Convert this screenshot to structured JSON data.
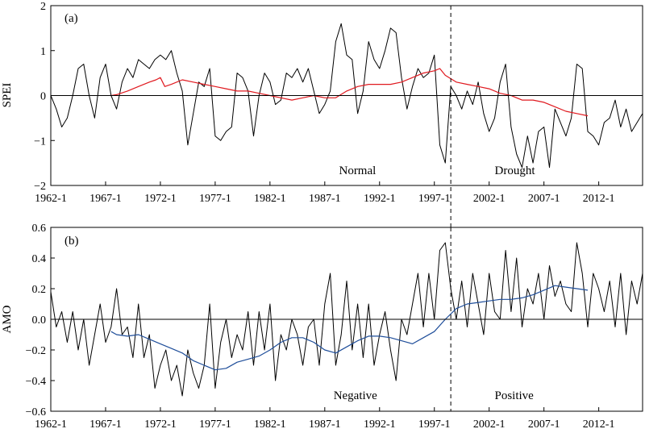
{
  "chart_data": [
    {
      "type": "line",
      "panel_label": "(a)",
      "ylabel": "SPEI",
      "xlabel": "",
      "x_unit": "year",
      "xlim": [
        1962.0,
        2016.0
      ],
      "ylim": [
        -2,
        2
      ],
      "xtick_labels": [
        "1962-1",
        "1967-1",
        "1972-1",
        "1977-1",
        "1982-1",
        "1987-1",
        "1992-1",
        "1997-1",
        "2002-1",
        "2007-1",
        "2012-1"
      ],
      "xtick_values": [
        1962,
        1967,
        1972,
        1977,
        1982,
        1987,
        1992,
        1997,
        2002,
        2007,
        2012
      ],
      "ytick_labels": [
        "−2",
        "−1",
        "0",
        "1",
        "2"
      ],
      "ytick_values": [
        -2,
        -1,
        0,
        1,
        2
      ],
      "zero_line": true,
      "divider_x": 1998.5,
      "annotations": [
        {
          "text": "Normal",
          "x": 1988.3,
          "y": -1.75
        },
        {
          "text": "Drought",
          "x": 2002.5,
          "y": -1.75
        }
      ],
      "series": [
        {
          "color": "#000000",
          "x": [
            1962.0,
            1962.5,
            1963.0,
            1963.5,
            1964.0,
            1964.5,
            1965.0,
            1965.5,
            1966.0,
            1966.5,
            1967.0,
            1967.5,
            1968.0,
            1968.5,
            1969.0,
            1969.5,
            1970.0,
            1970.5,
            1971.0,
            1971.5,
            1972.0,
            1972.5,
            1973.0,
            1973.5,
            1974.0,
            1974.5,
            1975.0,
            1975.5,
            1976.0,
            1976.5,
            1977.0,
            1977.5,
            1978.0,
            1978.5,
            1979.0,
            1979.5,
            1980.0,
            1980.5,
            1981.0,
            1981.5,
            1982.0,
            1982.5,
            1983.0,
            1983.5,
            1984.0,
            1984.5,
            1985.0,
            1985.5,
            1986.0,
            1986.5,
            1987.0,
            1987.5,
            1988.0,
            1988.5,
            1989.0,
            1989.5,
            1990.0,
            1990.5,
            1991.0,
            1991.5,
            1992.0,
            1992.5,
            1993.0,
            1993.5,
            1994.0,
            1994.5,
            1995.0,
            1995.5,
            1996.0,
            1996.5,
            1997.0,
            1997.5,
            1998.0,
            1998.5,
            1999.0,
            1999.5,
            2000.0,
            2000.5,
            2001.0,
            2001.5,
            2002.0,
            2002.5,
            2003.0,
            2003.5,
            2004.0,
            2004.5,
            2005.0,
            2005.5,
            2006.0,
            2006.5,
            2007.0,
            2007.5,
            2008.0,
            2008.5,
            2009.0,
            2009.5,
            2010.0,
            2010.5,
            2011.0,
            2011.5,
            2012.0,
            2012.5,
            2013.0,
            2013.5,
            2014.0,
            2014.5,
            2015.0,
            2015.5,
            2016.0
          ],
          "y": [
            0.0,
            -0.3,
            -0.7,
            -0.5,
            0.0,
            0.6,
            0.7,
            0.0,
            -0.5,
            0.4,
            0.7,
            0.0,
            -0.3,
            0.3,
            0.6,
            0.4,
            0.8,
            0.7,
            0.6,
            0.8,
            0.9,
            0.8,
            1.0,
            0.5,
            0.1,
            -1.1,
            -0.4,
            0.3,
            0.2,
            0.6,
            -0.9,
            -1.0,
            -0.8,
            -0.7,
            0.5,
            0.4,
            0.1,
            -0.9,
            0.0,
            0.5,
            0.3,
            -0.2,
            -0.1,
            0.5,
            0.4,
            0.6,
            0.3,
            0.6,
            0.1,
            -0.4,
            -0.2,
            0.1,
            1.2,
            1.6,
            0.9,
            0.8,
            -0.4,
            0.1,
            1.2,
            0.8,
            0.6,
            1.0,
            1.5,
            1.4,
            0.4,
            -0.3,
            0.2,
            0.6,
            0.4,
            0.5,
            0.9,
            -1.1,
            -1.5,
            0.2,
            0.0,
            -0.3,
            0.1,
            -0.2,
            0.3,
            -0.4,
            -0.8,
            -0.5,
            0.3,
            0.7,
            -0.7,
            -1.3,
            -1.6,
            -0.9,
            -1.5,
            -0.8,
            -0.7,
            -1.6,
            -0.3,
            -0.6,
            -0.9,
            -0.5,
            0.7,
            0.6,
            -0.8,
            -0.9,
            -1.1,
            -0.6,
            -0.5,
            -0.1,
            -0.7,
            -0.3,
            -0.8,
            -0.6,
            -0.4
          ]
        },
        {
          "color": "#e0191f",
          "x": [
            1967.5,
            1968.0,
            1969.0,
            1970.0,
            1971.0,
            1971.6,
            1972.0,
            1972.4,
            1973.0,
            1974.0,
            1975.0,
            1976.0,
            1977.0,
            1978.0,
            1979.0,
            1980.0,
            1981.0,
            1982.0,
            1983.0,
            1984.0,
            1985.0,
            1986.0,
            1987.0,
            1988.0,
            1989.0,
            1990.0,
            1991.0,
            1992.0,
            1993.0,
            1994.0,
            1995.0,
            1996.0,
            1997.0,
            1997.5,
            1998.0,
            1999.0,
            2000.0,
            2001.0,
            2002.0,
            2003.0,
            2004.0,
            2005.0,
            2006.0,
            2007.0,
            2008.0,
            2009.0,
            2010.0,
            2011.0
          ],
          "y": [
            0.0,
            0.02,
            0.1,
            0.2,
            0.3,
            0.35,
            0.4,
            0.2,
            0.25,
            0.35,
            0.3,
            0.25,
            0.2,
            0.15,
            0.1,
            0.1,
            0.05,
            0.0,
            -0.05,
            -0.1,
            -0.05,
            0.0,
            -0.05,
            -0.05,
            0.1,
            0.2,
            0.25,
            0.25,
            0.25,
            0.3,
            0.4,
            0.5,
            0.55,
            0.6,
            0.45,
            0.3,
            0.25,
            0.2,
            0.15,
            0.05,
            0.0,
            -0.1,
            -0.1,
            -0.15,
            -0.25,
            -0.35,
            -0.4,
            -0.45
          ]
        }
      ]
    },
    {
      "type": "line",
      "panel_label": "(b)",
      "ylabel": "AMO",
      "xlabel": "",
      "x_unit": "year",
      "xlim": [
        1962.0,
        2016.0
      ],
      "ylim": [
        -0.6,
        0.6
      ],
      "xtick_labels": [
        "1962-1",
        "1967-1",
        "1972-1",
        "1977-1",
        "1982-1",
        "1987-1",
        "1992-1",
        "1997-1",
        "2002-1",
        "2007-1",
        "2012-1"
      ],
      "xtick_values": [
        1962,
        1967,
        1972,
        1977,
        1982,
        1987,
        1992,
        1997,
        2002,
        2007,
        2012
      ],
      "ytick_labels": [
        "−0.6",
        "−0.4",
        "−0.2",
        "0.0",
        "0.2",
        "0.4",
        "0.6"
      ],
      "ytick_values": [
        -0.6,
        -0.4,
        -0.2,
        0.0,
        0.2,
        0.4,
        0.6
      ],
      "zero_line": true,
      "divider_x": 1998.5,
      "annotations": [
        {
          "text": "Negative",
          "x": 1987.8,
          "y": -0.52
        },
        {
          "text": "Positive",
          "x": 2002.5,
          "y": -0.52
        }
      ],
      "series": [
        {
          "color": "#000000",
          "x": [
            1962.0,
            1962.5,
            1963.0,
            1963.5,
            1964.0,
            1964.5,
            1965.0,
            1965.5,
            1966.0,
            1966.5,
            1967.0,
            1967.5,
            1968.0,
            1968.5,
            1969.0,
            1969.5,
            1970.0,
            1970.5,
            1971.0,
            1971.5,
            1972.0,
            1972.5,
            1973.0,
            1973.5,
            1974.0,
            1974.5,
            1975.0,
            1975.5,
            1976.0,
            1976.5,
            1977.0,
            1977.5,
            1978.0,
            1978.5,
            1979.0,
            1979.5,
            1980.0,
            1980.5,
            1981.0,
            1981.5,
            1982.0,
            1982.5,
            1983.0,
            1983.5,
            1984.0,
            1984.5,
            1985.0,
            1985.5,
            1986.0,
            1986.5,
            1987.0,
            1987.5,
            1988.0,
            1988.5,
            1989.0,
            1989.5,
            1990.0,
            1990.5,
            1991.0,
            1991.5,
            1992.0,
            1992.5,
            1993.0,
            1993.5,
            1994.0,
            1994.5,
            1995.0,
            1995.5,
            1996.0,
            1996.5,
            1997.0,
            1997.5,
            1998.0,
            1998.5,
            1999.0,
            1999.5,
            2000.0,
            2000.5,
            2001.0,
            2001.5,
            2002.0,
            2002.5,
            2003.0,
            2003.5,
            2004.0,
            2004.5,
            2005.0,
            2005.5,
            2006.0,
            2006.5,
            2007.0,
            2007.5,
            2008.0,
            2008.5,
            2009.0,
            2009.5,
            2010.0,
            2010.5,
            2011.0,
            2011.5,
            2012.0,
            2012.5,
            2013.0,
            2013.5,
            2014.0,
            2014.5,
            2015.0,
            2015.5,
            2016.0
          ],
          "y": [
            0.18,
            -0.05,
            0.05,
            -0.15,
            0.05,
            -0.2,
            0.0,
            -0.3,
            -0.1,
            0.1,
            -0.15,
            -0.05,
            0.2,
            -0.1,
            -0.05,
            -0.25,
            0.1,
            -0.25,
            -0.1,
            -0.45,
            -0.3,
            -0.2,
            -0.4,
            -0.3,
            -0.5,
            -0.2,
            -0.35,
            -0.45,
            -0.3,
            0.1,
            -0.45,
            -0.15,
            0.0,
            -0.25,
            -0.1,
            -0.2,
            0.05,
            -0.3,
            0.05,
            -0.2,
            0.1,
            -0.4,
            -0.1,
            -0.2,
            0.0,
            -0.1,
            -0.3,
            -0.05,
            0.0,
            -0.3,
            0.1,
            0.3,
            -0.3,
            -0.1,
            0.25,
            -0.2,
            0.1,
            -0.25,
            0.1,
            -0.3,
            -0.1,
            0.05,
            -0.2,
            -0.4,
            0.0,
            -0.1,
            0.1,
            0.3,
            -0.05,
            0.3,
            0.0,
            0.45,
            0.5,
            0.2,
            0.0,
            0.25,
            -0.05,
            0.3,
            0.1,
            -0.1,
            0.3,
            0.05,
            0.0,
            0.45,
            0.05,
            0.4,
            -0.05,
            0.2,
            0.1,
            0.3,
            0.0,
            0.35,
            0.15,
            0.25,
            0.1,
            0.05,
            0.5,
            0.3,
            -0.05,
            0.3,
            0.2,
            0.05,
            0.25,
            -0.05,
            0.3,
            -0.1,
            0.25,
            0.1,
            0.3
          ]
        },
        {
          "color": "#1f4e9a",
          "x": [
            1967.5,
            1968.0,
            1969.0,
            1970.0,
            1971.0,
            1972.0,
            1973.0,
            1974.0,
            1975.0,
            1976.0,
            1977.0,
            1978.0,
            1979.0,
            1980.0,
            1981.0,
            1982.0,
            1983.0,
            1984.0,
            1985.0,
            1986.0,
            1987.0,
            1988.0,
            1989.0,
            1990.0,
            1991.0,
            1992.0,
            1993.0,
            1994.0,
            1995.0,
            1996.0,
            1997.0,
            1998.0,
            1999.0,
            2000.0,
            2001.0,
            2002.0,
            2003.0,
            2004.0,
            2005.0,
            2006.0,
            2007.0,
            2008.0,
            2009.0,
            2010.0,
            2011.0
          ],
          "y": [
            -0.08,
            -0.1,
            -0.11,
            -0.1,
            -0.13,
            -0.16,
            -0.19,
            -0.22,
            -0.27,
            -0.3,
            -0.33,
            -0.32,
            -0.28,
            -0.26,
            -0.24,
            -0.2,
            -0.15,
            -0.12,
            -0.12,
            -0.15,
            -0.2,
            -0.22,
            -0.18,
            -0.14,
            -0.11,
            -0.11,
            -0.12,
            -0.14,
            -0.16,
            -0.12,
            -0.08,
            0.0,
            0.07,
            0.1,
            0.11,
            0.12,
            0.13,
            0.13,
            0.14,
            0.16,
            0.19,
            0.22,
            0.21,
            0.2,
            0.19
          ]
        }
      ]
    }
  ]
}
